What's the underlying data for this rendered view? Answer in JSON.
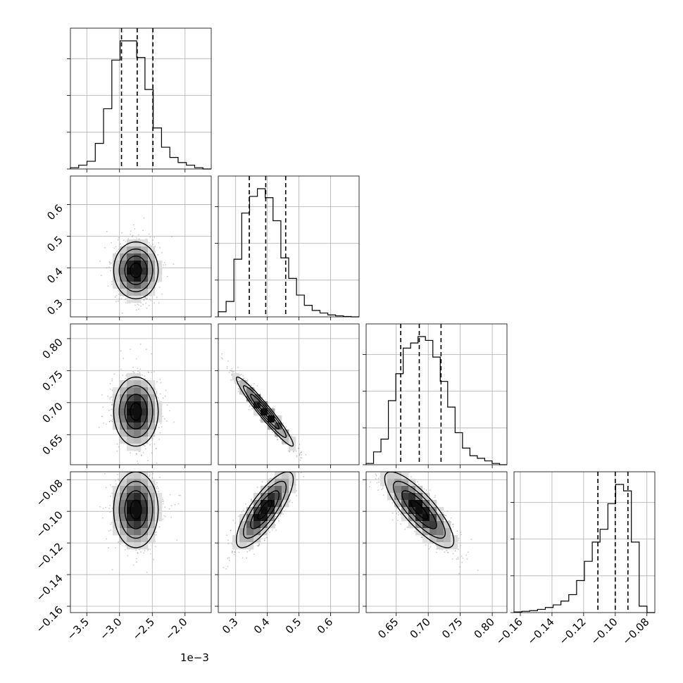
{
  "chart_data": {
    "type": "corner",
    "offset_label": "1e−3",
    "grid": true,
    "parameters": [
      {
        "range": [
          -3.75,
          -1.6
        ],
        "ticks": [
          -3.5,
          -3.0,
          -2.5,
          -2.0
        ],
        "tick_labels": [
          "−3.5",
          "−3.0",
          "−2.5",
          "−2.0"
        ],
        "quantiles": [
          -2.97,
          -2.73,
          -2.49
        ],
        "hist": [
          0.01,
          0.03,
          0.06,
          0.2,
          0.47,
          0.85,
          1.0,
          1.0,
          0.87,
          0.62,
          0.32,
          0.17,
          0.09,
          0.05,
          0.03,
          0.01,
          0.0
        ],
        "center": -2.75,
        "sd": 0.17
      },
      {
        "range": [
          0.245,
          0.69
        ],
        "ticks": [
          0.3,
          0.4,
          0.5,
          0.6
        ],
        "tick_labels": [
          "0.3",
          "0.4",
          "0.5",
          "0.6"
        ],
        "quantiles": [
          0.343,
          0.395,
          0.458
        ],
        "hist": [
          0.04,
          0.12,
          0.45,
          0.81,
          0.94,
          1.0,
          0.93,
          0.75,
          0.46,
          0.3,
          0.17,
          0.09,
          0.05,
          0.03,
          0.015,
          0.008,
          0.003,
          0.0
        ],
        "center": 0.392,
        "sd": 0.045
      },
      {
        "range": [
          0.603,
          0.823
        ],
        "ticks": [
          0.65,
          0.7,
          0.75,
          0.8
        ],
        "tick_labels": [
          "0.65",
          "0.70",
          "0.75",
          "0.80"
        ],
        "quantiles": [
          0.657,
          0.686,
          0.72
        ],
        "hist": [
          0.01,
          0.1,
          0.2,
          0.5,
          0.71,
          0.91,
          0.95,
          1.0,
          0.97,
          0.84,
          0.65,
          0.45,
          0.25,
          0.13,
          0.07,
          0.05,
          0.03,
          0.01,
          0.0
        ],
        "center": 0.686,
        "sd": 0.027
      },
      {
        "range": [
          -0.164,
          -0.075
        ],
        "ticks": [
          -0.16,
          -0.14,
          -0.12,
          -0.1,
          -0.08
        ],
        "tick_labels": [
          "−0.16",
          "−0.14",
          "−0.12",
          "−0.10",
          "−0.08"
        ],
        "quantiles": [
          -0.111,
          -0.1,
          -0.092
        ],
        "hist": [
          0.005,
          0.01,
          0.015,
          0.025,
          0.04,
          0.06,
          0.09,
          0.14,
          0.25,
          0.4,
          0.55,
          0.65,
          0.85,
          1.0,
          0.95,
          0.55,
          0.05,
          0.0
        ],
        "center": -0.099,
        "sd": 0.012
      }
    ],
    "pairs": [
      {
        "row": 1,
        "col": 0,
        "rho": 0.0
      },
      {
        "row": 2,
        "col": 0,
        "rho": 0.0
      },
      {
        "row": 2,
        "col": 1,
        "rho": -0.96
      },
      {
        "row": 3,
        "col": 0,
        "rho": 0.0
      },
      {
        "row": 3,
        "col": 1,
        "rho": 0.8
      },
      {
        "row": 3,
        "col": 2,
        "rho": -0.82
      }
    ]
  }
}
